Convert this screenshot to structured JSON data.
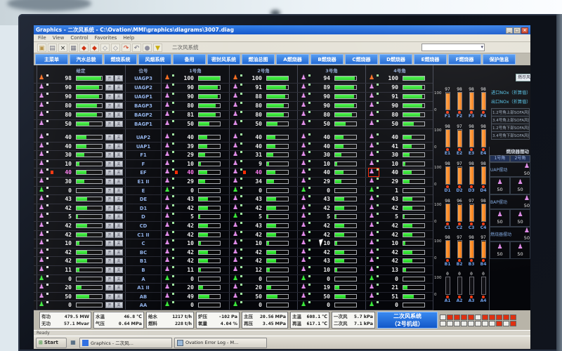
{
  "window": {
    "title": "Graphics - 二次风系统 - C:\\Ovation\\MMI\\graphics\\diagrams\\3007.diag",
    "menu": [
      "File",
      "View",
      "Control",
      "Favorites",
      "Help"
    ],
    "window_buttons": [
      "_",
      "□",
      "×"
    ],
    "toolbar_icons": [
      {
        "name": "open-icon",
        "glyph": "▣",
        "color": "#b08a3a"
      },
      {
        "name": "print-icon",
        "glyph": "▤",
        "color": "#667"
      },
      {
        "name": "delete-icon",
        "glyph": "×",
        "color": "#111"
      },
      {
        "name": "grid-icon",
        "glyph": "▦",
        "color": "#667"
      },
      {
        "name": "poke-up-icon",
        "glyph": "◆",
        "color": "#cc2200"
      },
      {
        "name": "poke-down-icon",
        "glyph": "◆",
        "color": "#cc2200"
      },
      {
        "name": "nav-prev-icon",
        "glyph": "◇",
        "color": "#778"
      },
      {
        "name": "nav-next-icon",
        "glyph": "◇",
        "color": "#778"
      },
      {
        "name": "redo-icon",
        "glyph": "↷",
        "color": "#cc2200"
      },
      {
        "name": "undo-icon",
        "glyph": "↶",
        "color": "#667"
      },
      {
        "name": "snapshot-icon",
        "glyph": "●",
        "color": "#889"
      },
      {
        "name": "alarm-icon",
        "glyph": "▼",
        "color": "#c8a800"
      }
    ],
    "toolbar_system_label": "二次风系统"
  },
  "tabs": [
    "主菜单",
    "汽水总貌",
    "燃烧系统",
    "风烟系统",
    "备用",
    "密封风系统",
    "燃油总图",
    "A燃烧器",
    "B燃烧器",
    "C燃烧器",
    "D燃烧器",
    "E燃烧器",
    "F燃烧器",
    "保护信息"
  ],
  "table": {
    "headers": {
      "setpoint": "给定",
      "tag": "位号",
      "corners": [
        "1号角",
        "2号角",
        "3号角",
        "4号角"
      ]
    },
    "open_label": "开",
    "close_label": "关",
    "rows": [
      {
        "tag": "UAGP3",
        "values": [
          98,
          100,
          100,
          94,
          100
        ],
        "icons": [
          "o",
          "o",
          "o",
          "p",
          "o"
        ],
        "section": 1
      },
      {
        "tag": "UAGP2",
        "values": [
          90,
          90,
          91,
          89,
          90
        ],
        "icons": [
          "p",
          "p",
          "p",
          "p",
          "p"
        ],
        "section": 1
      },
      {
        "tag": "UAGP1",
        "values": [
          90,
          90,
          88,
          90,
          91
        ],
        "icons": [
          "p",
          "p",
          "p",
          "p",
          "p"
        ],
        "section": 1
      },
      {
        "tag": "BAGP3",
        "values": [
          80,
          80,
          80,
          90,
          90
        ],
        "icons": [
          "p",
          "p",
          "p",
          "p",
          "p"
        ],
        "section": 1
      },
      {
        "tag": "BAGP2",
        "values": [
          80,
          81,
          80,
          80,
          80
        ],
        "icons": [
          "p",
          "p",
          "p",
          "p",
          "p"
        ],
        "section": 1
      },
      {
        "tag": "BAGP1",
        "values": [
          50,
          50,
          50,
          50,
          50
        ],
        "icons": [
          "p",
          "p",
          "p",
          "p",
          "p"
        ],
        "section": 1
      },
      {
        "tag": "UAP2",
        "values": [
          40,
          40,
          40,
          40,
          40
        ],
        "icons": [
          "p",
          "p",
          "p",
          "p",
          "p"
        ],
        "section": 2
      },
      {
        "tag": "UAP1",
        "values": [
          40,
          39,
          40,
          40,
          41
        ],
        "icons": [
          "p",
          "p",
          "p",
          "p",
          "p"
        ],
        "section": 2
      },
      {
        "tag": "F1",
        "values": [
          30,
          29,
          31,
          30,
          30
        ],
        "icons": [
          "p",
          "p",
          "p",
          "p",
          "p"
        ],
        "section": 2
      },
      {
        "tag": "F",
        "values": [
          10,
          10,
          9,
          10,
          10
        ],
        "icons": [
          "p",
          "p",
          "p",
          "p",
          "p"
        ],
        "section": 2
      },
      {
        "tag": "EF",
        "values": [
          40,
          40,
          40,
          40,
          40
        ],
        "icons": [
          "p",
          "p",
          "p",
          "p",
          "p"
        ],
        "section": 2,
        "alarm": [
          true,
          true,
          true,
          false,
          false
        ],
        "icon_alarm_box": 4
      },
      {
        "tag": "E1 II",
        "values": [
          30,
          29,
          34,
          29,
          29
        ],
        "icons": [
          "p",
          "p",
          "p",
          "p",
          "p"
        ],
        "section": 2
      },
      {
        "tag": "E",
        "values": [
          0,
          0,
          0,
          0,
          1
        ],
        "icons": [
          "g",
          "g",
          "g",
          "g",
          "g"
        ],
        "section": 2
      },
      {
        "tag": "DE",
        "values": [
          43,
          43,
          43,
          43,
          43
        ],
        "icons": [
          "p",
          "p",
          "p",
          "p",
          "p"
        ],
        "section": 2
      },
      {
        "tag": "D1",
        "values": [
          42,
          42,
          42,
          42,
          42
        ],
        "icons": [
          "p",
          "p",
          "p",
          "p",
          "p"
        ],
        "section": 2
      },
      {
        "tag": "D",
        "values": [
          5,
          5,
          5,
          5,
          5
        ],
        "icons": [
          "p",
          "p",
          "g",
          "p",
          "p"
        ],
        "section": 2
      },
      {
        "tag": "CD",
        "values": [
          42,
          42,
          43,
          42,
          42
        ],
        "icons": [
          "p",
          "p",
          "p",
          "p",
          "p"
        ],
        "section": 2
      },
      {
        "tag": "C1 II",
        "values": [
          42,
          42,
          42,
          42,
          42
        ],
        "icons": [
          "p",
          "p",
          "p",
          "p",
          "p"
        ],
        "section": 2
      },
      {
        "tag": "C",
        "values": [
          10,
          10,
          10,
          10,
          10
        ],
        "icons": [
          "p",
          "p",
          "p",
          "p",
          "p"
        ],
        "section": 2
      },
      {
        "tag": "BC",
        "values": [
          42,
          42,
          42,
          42,
          42
        ],
        "icons": [
          "p",
          "p",
          "p",
          "p",
          "p"
        ],
        "section": 2
      },
      {
        "tag": "B1",
        "values": [
          42,
          42,
          42,
          43,
          42
        ],
        "icons": [
          "p",
          "p",
          "p",
          "p",
          "p"
        ],
        "section": 2
      },
      {
        "tag": "B",
        "values": [
          11,
          11,
          12,
          10,
          13
        ],
        "icons": [
          "p",
          "p",
          "p",
          "p",
          "p"
        ],
        "section": 2
      },
      {
        "tag": "A",
        "values": [
          0,
          0,
          0,
          0,
          0
        ],
        "icons": [
          "g",
          "g",
          "g",
          "g",
          "g"
        ],
        "section": 2
      },
      {
        "tag": "A1 II",
        "values": [
          20,
          20,
          20,
          19,
          21
        ],
        "icons": [
          "p",
          "p",
          "p",
          "p",
          "p"
        ],
        "section": 2
      },
      {
        "tag": "AB",
        "values": [
          50,
          49,
          50,
          50,
          51
        ],
        "icons": [
          "p",
          "p",
          "p",
          "p",
          "p"
        ],
        "section": 2
      },
      {
        "tag": "AA",
        "values": [
          0,
          0,
          0,
          0,
          0
        ],
        "icons": [
          "g",
          "g",
          "g",
          "g",
          "g"
        ],
        "section": 2
      }
    ]
  },
  "right_panel": {
    "gauge_button": "燃尽风%",
    "scale_top": "100",
    "scale_bottom": "0",
    "nox_lines": [
      "进口NOx（折算值）",
      "出口NOx（折算值）"
    ],
    "sofa_lines": [
      "1.2号角上部SOFA风量",
      "3.4号角上部SOFA风量",
      "1.2号角下部SOFA风量",
      "3.4号角下部SOFA风量"
    ],
    "bar_groups": [
      {
        "level": "F",
        "labels": [
          "F1",
          "F2",
          "F3",
          "F4"
        ],
        "values": [
          97,
          98,
          98,
          98
        ]
      },
      {
        "level": "E",
        "labels": [
          "E1",
          "E2",
          "E3",
          "E4"
        ],
        "values": [
          98,
          97,
          98,
          98
        ]
      },
      {
        "level": "D",
        "labels": [
          "D1",
          "D2",
          "D3",
          "D4"
        ],
        "values": [
          98,
          97,
          98,
          98
        ]
      },
      {
        "level": "C",
        "labels": [
          "C1",
          "C2",
          "C3",
          "C4"
        ],
        "values": [
          98,
          96,
          97,
          98
        ]
      },
      {
        "level": "B",
        "labels": [
          "B1",
          "B2",
          "B3",
          "B4"
        ],
        "values": [
          98,
          97,
          98,
          97
        ]
      },
      {
        "level": "A",
        "labels": [
          "A1",
          "A2",
          "A3",
          "A4"
        ],
        "values": [
          0,
          0,
          0,
          0
        ]
      }
    ],
    "tilt_panel": {
      "title": "燃烧器摆动",
      "col_headers": [
        "1号角",
        "2号角"
      ],
      "rows": [
        {
          "label": "UAP摆动",
          "setpoint": "50",
          "values": [
            "50",
            "50"
          ]
        },
        {
          "label": "BAP摆动",
          "setpoint": "50",
          "values": [
            "50",
            "50"
          ]
        },
        {
          "label": "燃烧器摆动",
          "setpoint": "50",
          "values": [
            "50",
            "50"
          ]
        }
      ]
    }
  },
  "status_bar": {
    "boxes": [
      {
        "rows": [
          [
            "有功",
            "479.5",
            "MW"
          ],
          [
            "无功",
            "57.1",
            "Mvar"
          ]
        ]
      },
      {
        "rows": [
          [
            "水温",
            "46.8",
            "℃"
          ],
          [
            "气压",
            "0.64",
            "MPa"
          ]
        ]
      },
      {
        "rows": [
          [
            "给水",
            "1217",
            "t/h"
          ],
          [
            "燃料",
            "228",
            "t/h"
          ]
        ]
      },
      {
        "rows": [
          [
            "炉压",
            "-102",
            "Pa"
          ],
          [
            "氧量",
            "4.04",
            "%"
          ]
        ]
      },
      {
        "rows": [
          [
            "主压",
            "20.56",
            "MPa"
          ],
          [
            "再压",
            "3.45",
            "MPa"
          ]
        ]
      },
      {
        "rows": [
          [
            "主温",
            "608.1",
            "℃"
          ],
          [
            "再温",
            "617.1",
            "℃"
          ]
        ]
      },
      {
        "rows": [
          [
            "一次风",
            "5.7",
            "kPa"
          ],
          [
            "二次风",
            "7.1",
            "kPa"
          ]
        ]
      }
    ],
    "system_box": [
      "二次风系统",
      "（2号机组）"
    ],
    "button_rows": [
      [
        "w",
        "r",
        "r",
        "r",
        "r",
        "w",
        "r",
        "r",
        "r",
        "r",
        "r"
      ],
      [
        "w",
        "w",
        "w",
        "w",
        "w",
        "w",
        "w",
        "w",
        "r",
        "w",
        "r"
      ]
    ]
  },
  "taskbar": {
    "ready": "Ready",
    "start": "Start",
    "tasks": [
      "Graphics - 二次风...",
      "Ovation Error Log - M..."
    ]
  }
}
